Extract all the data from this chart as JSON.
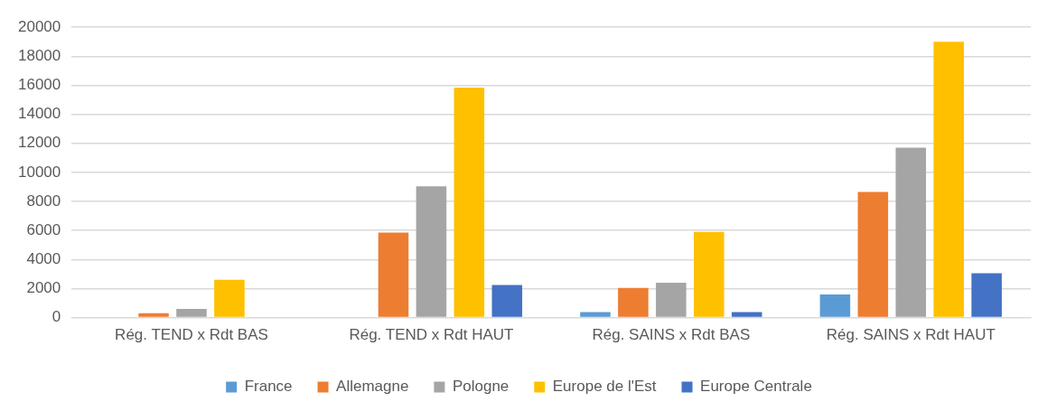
{
  "chart_data": {
    "type": "bar",
    "categories": [
      "Rég. TEND x Rdt BAS",
      "Rég. TEND x Rdt HAUT",
      "Rég. SAINS x Rdt BAS",
      "Rég. SAINS x Rdt HAUT"
    ],
    "series": [
      {
        "name": "France",
        "color": "#5b9bd5",
        "values": [
          0,
          0,
          380,
          1600
        ]
      },
      {
        "name": "Allemagne",
        "color": "#ed7d31",
        "values": [
          300,
          5850,
          2050,
          8650
        ]
      },
      {
        "name": "Pologne",
        "color": "#a5a5a5",
        "values": [
          600,
          9050,
          2400,
          11700
        ]
      },
      {
        "name": "Europe de l'Est",
        "color": "#ffc000",
        "values": [
          2600,
          15850,
          5900,
          19000
        ]
      },
      {
        "name": "Europe Centrale",
        "color": "#4472c4",
        "values": [
          0,
          2250,
          380,
          3050
        ]
      }
    ],
    "ylim": [
      0,
      20000
    ],
    "yticks": [
      0,
      2000,
      4000,
      6000,
      8000,
      10000,
      12000,
      14000,
      16000,
      18000,
      20000
    ],
    "grid": "y",
    "legend": "bottom"
  }
}
